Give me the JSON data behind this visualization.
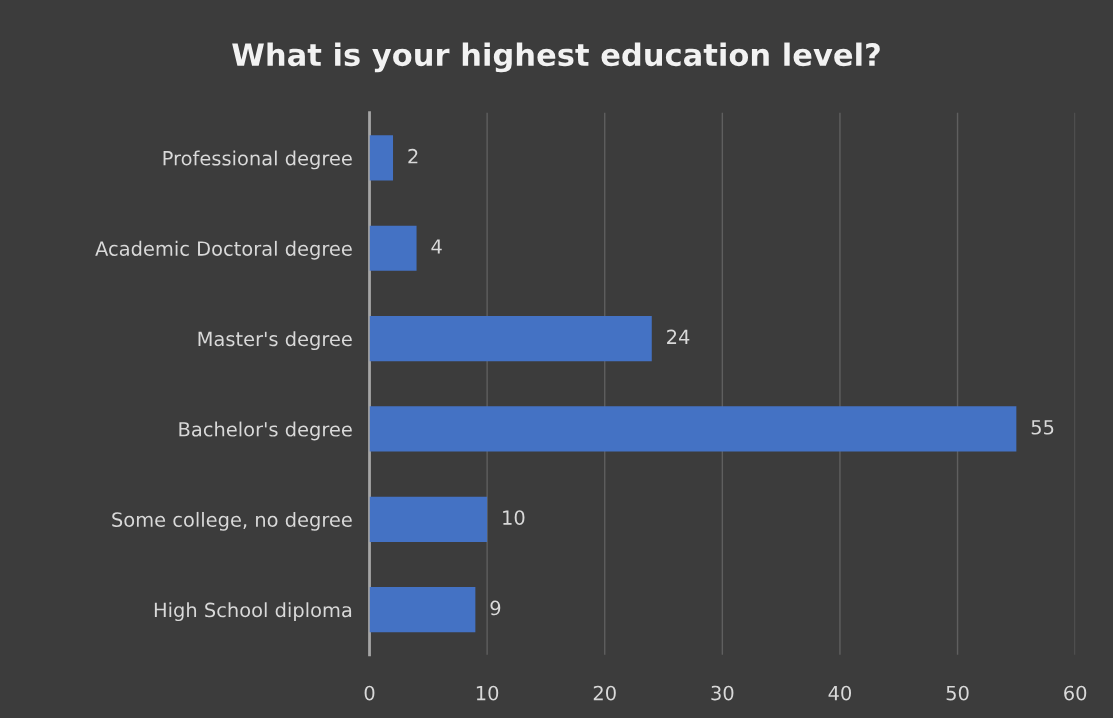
{
  "chart_data": {
    "type": "bar",
    "orientation": "horizontal",
    "title": "What is your highest education level?",
    "categories": [
      "Professional degree",
      "Academic Doctoral degree",
      "Master's degree",
      "Bachelor's degree",
      "Some college, no degree",
      "High School diploma"
    ],
    "values": [
      2,
      4,
      24,
      55,
      10,
      9
    ],
    "color": "#4472c4",
    "xlim": [
      0,
      60
    ],
    "xticks": [
      0,
      10,
      20,
      30,
      40,
      50,
      60
    ],
    "grid": "x",
    "data_labels": true,
    "legend": false
  }
}
